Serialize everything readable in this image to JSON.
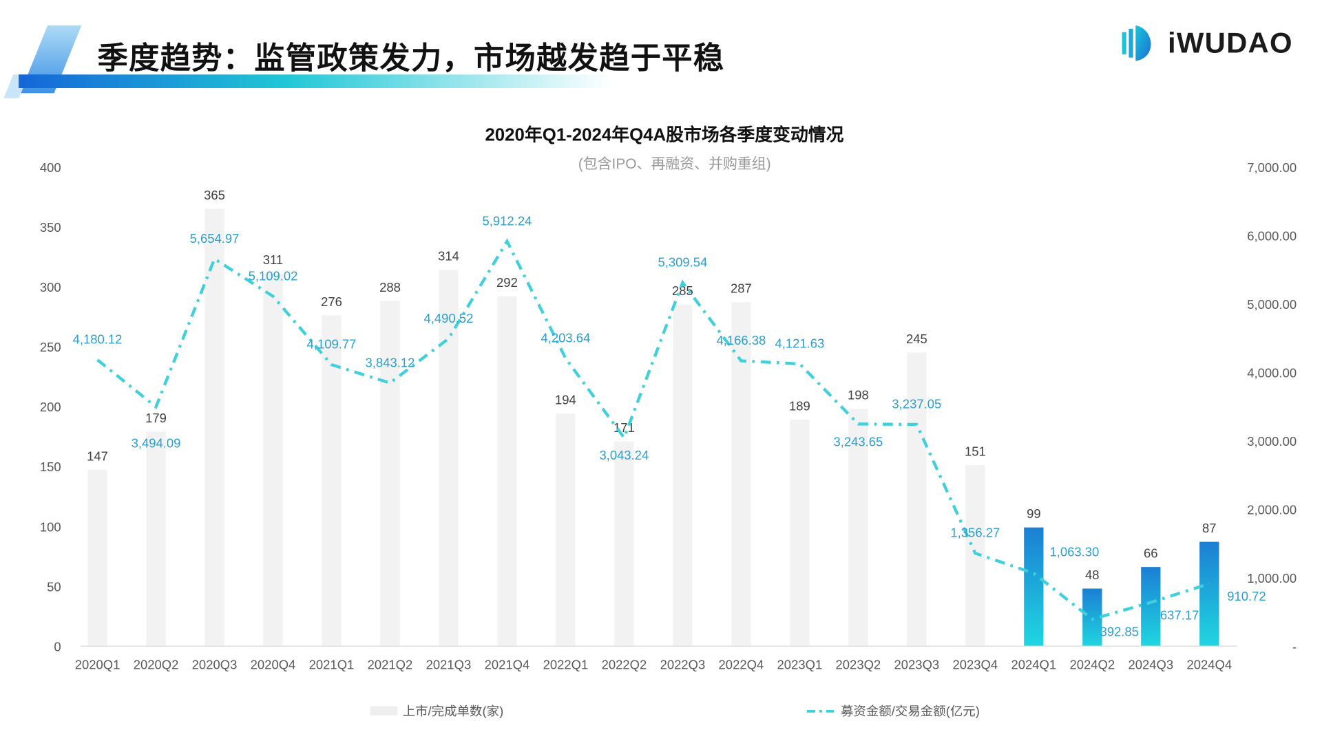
{
  "header": {
    "title": "季度趋势：监管政策发力，市场越发趋于平稳",
    "logo_text": "iWUDAO"
  },
  "chart_data": {
    "type": "bar+line",
    "title": "2020年Q1-2024年Q4A股市场各季度变动情况",
    "subtitle": "(包含IPO、再融资、并购重组)",
    "categories": [
      "2020Q1",
      "2020Q2",
      "2020Q3",
      "2020Q4",
      "2021Q1",
      "2021Q2",
      "2021Q3",
      "2021Q4",
      "2022Q1",
      "2022Q2",
      "2022Q3",
      "2022Q4",
      "2023Q1",
      "2023Q2",
      "2023Q3",
      "2023Q4",
      "2024Q1",
      "2024Q2",
      "2024Q3",
      "2024Q4"
    ],
    "series": [
      {
        "name": "上市/完成单数(家)",
        "type": "bar",
        "axis": "left",
        "values": [
          147,
          179,
          365,
          311,
          276,
          288,
          314,
          292,
          194,
          171,
          285,
          287,
          189,
          198,
          245,
          151,
          99,
          48,
          66,
          87
        ],
        "labels": [
          "147",
          "179",
          "365",
          "311",
          "276",
          "288",
          "314",
          "292",
          "194",
          "171",
          "285",
          "287",
          "189",
          "198",
          "245",
          "151",
          "99",
          "48",
          "66",
          "87"
        ],
        "color": "#f2f2f2",
        "highlight_color": "#1b7fd4",
        "highlight_from": "2024Q1"
      },
      {
        "name": "募资金额/交易金额(亿元)",
        "type": "line",
        "axis": "right",
        "style": "dash-dot",
        "values": [
          4180.12,
          3494.09,
          5654.97,
          5109.02,
          4109.77,
          3843.12,
          4490.52,
          5912.24,
          4203.64,
          3043.24,
          5309.54,
          4166.38,
          4121.63,
          3243.65,
          3237.05,
          1356.27,
          1063.3,
          392.85,
          637.17,
          910.72
        ],
        "labels": [
          "4,180.12",
          "3,494.09",
          "5,654.97",
          "5,109.02",
          "4,109.77",
          "3,843.12",
          "4,490.52",
          "5,912.24",
          "4,203.64",
          "3,043.24",
          "5,309.54",
          "4,166.38",
          "4,121.63",
          "3,243.65",
          "3,237.05",
          "1,356.27",
          "1,063.30",
          "392.85",
          "637.17",
          "910.72"
        ],
        "color": "#3fd0dc",
        "label_color": "#2a9fd0"
      }
    ],
    "left_axis": {
      "range": [
        0,
        400
      ],
      "ticks": [
        "0",
        "50",
        "100",
        "150",
        "200",
        "250",
        "300",
        "350",
        "400"
      ]
    },
    "right_axis": {
      "range": [
        0,
        7000
      ],
      "ticks": [
        "-",
        "1,000.00",
        "2,000.00",
        "3,000.00",
        "4,000.00",
        "5,000.00",
        "6,000.00",
        "7,000.00"
      ]
    },
    "grid": false,
    "legend": "bottom"
  }
}
